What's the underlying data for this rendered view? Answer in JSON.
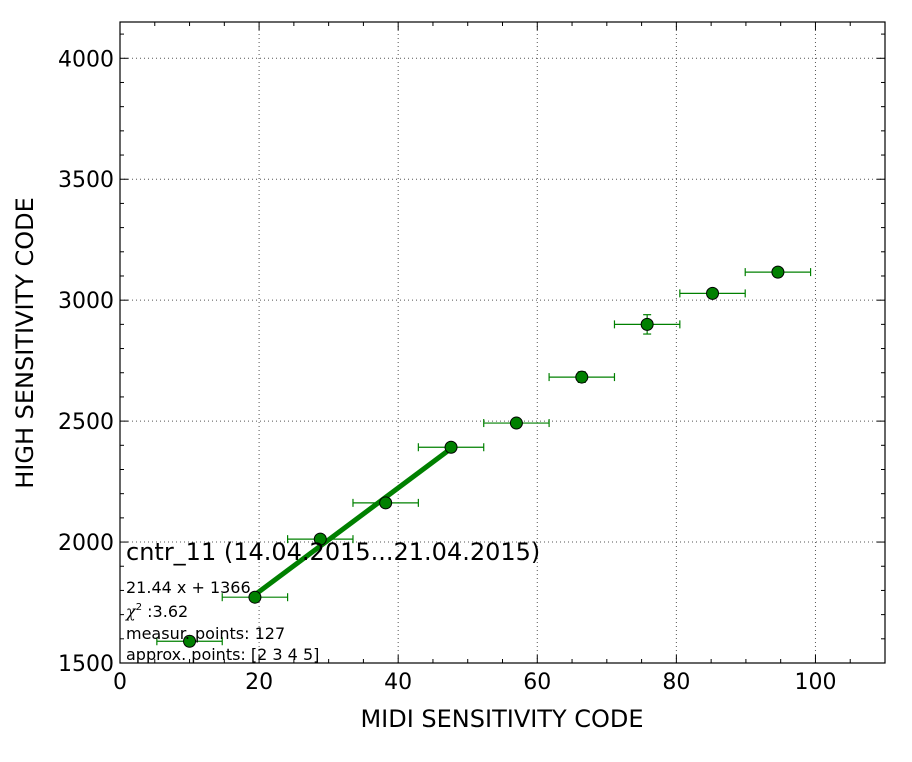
{
  "chart_data": {
    "type": "scatter",
    "xlabel": "MIDI SENSITIVITY CODE",
    "ylabel": "HIGH SENSITIVITY CODE",
    "xlim": [
      0,
      110
    ],
    "ylim": [
      1500,
      4150
    ],
    "x_ticks": [
      0,
      20,
      40,
      60,
      80,
      100
    ],
    "y_ticks": [
      1500,
      2000,
      2500,
      3000,
      3500,
      4000
    ],
    "grid": true,
    "colors": {
      "points": "#008000",
      "fit": "#008000",
      "grid": "#555555"
    },
    "points": [
      {
        "x": 10,
        "y": 1590,
        "xerr": 4.7,
        "yerr": 0
      },
      {
        "x": 19.4,
        "y": 1772,
        "xerr": 4.7,
        "yerr": 0
      },
      {
        "x": 28.8,
        "y": 2012,
        "xerr": 4.7,
        "yerr": 0
      },
      {
        "x": 38.2,
        "y": 2162,
        "xerr": 4.7,
        "yerr": 0
      },
      {
        "x": 47.6,
        "y": 2392,
        "xerr": 4.7,
        "yerr": 0
      },
      {
        "x": 57,
        "y": 2492,
        "xerr": 4.7,
        "yerr": 0
      },
      {
        "x": 66.4,
        "y": 2682,
        "xerr": 4.7,
        "yerr": 22
      },
      {
        "x": 75.8,
        "y": 2900,
        "xerr": 4.7,
        "yerr": 40
      },
      {
        "x": 85.2,
        "y": 3028,
        "xerr": 4.7,
        "yerr": 0
      },
      {
        "x": 94.6,
        "y": 3116,
        "xerr": 4.7,
        "yerr": 0
      }
    ],
    "fit": {
      "slope": 21.44,
      "intercept": 1366,
      "x_range": [
        19.4,
        47.6
      ]
    },
    "annotations": {
      "title": "cntr_11 (14.04.2015...21.04.2015)",
      "equation": "21.44 x + 1366",
      "chi_symbol": "χ",
      "chi_sup": "2",
      "chi_value": " :3.62",
      "measur_points": "measur. points: 127",
      "approx_points": "approx. points: [2 3 4 5]"
    }
  }
}
